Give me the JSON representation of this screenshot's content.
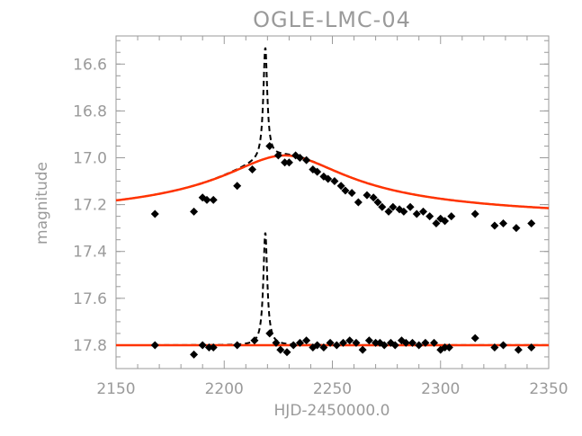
{
  "chart_data": {
    "type": "scatter",
    "title": "OGLE-LMC-04",
    "xlabel": "HJD-2450000.0",
    "ylabel": "magnitude",
    "xlim": [
      2150,
      2350
    ],
    "ylim": [
      17.9,
      16.48
    ],
    "y_inverted": true,
    "grid": false,
    "legend": "none",
    "colors": {
      "axes": "#9a9a9a",
      "points": "#000000",
      "model_fit": "#ff3300",
      "model_dashed": "#000000"
    },
    "x_ticks": [
      "2150",
      "2200",
      "2250",
      "2300",
      "2350"
    ],
    "y_ticks": [
      "16.6",
      "16.8",
      "17.0",
      "17.2",
      "17.4",
      "17.6",
      "17.8"
    ],
    "x_tick_values": [
      2150,
      2200,
      2250,
      2300,
      2350
    ],
    "y_tick_values": [
      16.6,
      16.8,
      17.0,
      17.2,
      17.4,
      17.6,
      17.8
    ],
    "upper_points": [
      [
        2168,
        17.24
      ],
      [
        2186,
        17.23
      ],
      [
        2190,
        17.17
      ],
      [
        2192,
        17.18
      ],
      [
        2195,
        17.18
      ],
      [
        2206,
        17.12
      ],
      [
        2213,
        17.05
      ],
      [
        2221,
        16.95
      ],
      [
        2225,
        16.99
      ],
      [
        2228,
        17.02
      ],
      [
        2230,
        17.02
      ],
      [
        2233,
        16.99
      ],
      [
        2235,
        17.0
      ],
      [
        2238,
        17.01
      ],
      [
        2241,
        17.05
      ],
      [
        2243,
        17.06
      ],
      [
        2246,
        17.08
      ],
      [
        2248,
        17.09
      ],
      [
        2251,
        17.1
      ],
      [
        2254,
        17.12
      ],
      [
        2256,
        17.14
      ],
      [
        2259,
        17.15
      ],
      [
        2262,
        17.19
      ],
      [
        2266,
        17.16
      ],
      [
        2269,
        17.17
      ],
      [
        2271,
        17.19
      ],
      [
        2273,
        17.21
      ],
      [
        2276,
        17.23
      ],
      [
        2278,
        17.21
      ],
      [
        2281,
        17.22
      ],
      [
        2283,
        17.23
      ],
      [
        2286,
        17.21
      ],
      [
        2289,
        17.24
      ],
      [
        2292,
        17.23
      ],
      [
        2295,
        17.25
      ],
      [
        2298,
        17.28
      ],
      [
        2300,
        17.26
      ],
      [
        2302,
        17.27
      ],
      [
        2305,
        17.25
      ],
      [
        2316,
        17.24
      ],
      [
        2325,
        17.29
      ],
      [
        2329,
        17.28
      ],
      [
        2335,
        17.3
      ],
      [
        2342,
        17.28
      ]
    ],
    "lower_points": [
      [
        2168,
        17.8
      ],
      [
        2186,
        17.84
      ],
      [
        2190,
        17.8
      ],
      [
        2193,
        17.81
      ],
      [
        2195,
        17.81
      ],
      [
        2206,
        17.8
      ],
      [
        2214,
        17.78
      ],
      [
        2221,
        17.75
      ],
      [
        2224,
        17.79
      ],
      [
        2226,
        17.82
      ],
      [
        2229,
        17.83
      ],
      [
        2232,
        17.8
      ],
      [
        2235,
        17.79
      ],
      [
        2238,
        17.78
      ],
      [
        2241,
        17.81
      ],
      [
        2243,
        17.8
      ],
      [
        2246,
        17.81
      ],
      [
        2249,
        17.79
      ],
      [
        2252,
        17.8
      ],
      [
        2255,
        17.79
      ],
      [
        2258,
        17.78
      ],
      [
        2261,
        17.79
      ],
      [
        2264,
        17.82
      ],
      [
        2267,
        17.78
      ],
      [
        2270,
        17.79
      ],
      [
        2272,
        17.79
      ],
      [
        2274,
        17.8
      ],
      [
        2277,
        17.79
      ],
      [
        2279,
        17.8
      ],
      [
        2282,
        17.78
      ],
      [
        2284,
        17.79
      ],
      [
        2287,
        17.79
      ],
      [
        2290,
        17.8
      ],
      [
        2293,
        17.79
      ],
      [
        2297,
        17.79
      ],
      [
        2300,
        17.82
      ],
      [
        2302,
        17.81
      ],
      [
        2304,
        17.81
      ],
      [
        2316,
        17.77
      ],
      [
        2325,
        17.81
      ],
      [
        2329,
        17.8
      ],
      [
        2336,
        17.82
      ],
      [
        2342,
        17.81
      ]
    ],
    "upper_fit_params": {
      "baseline": 17.28,
      "amplitude": 0.29,
      "t0": 2228,
      "width": 28
    },
    "upper_spike_params": {
      "peak": 16.53,
      "t0": 2219
    },
    "lower_fit_level": 17.8,
    "lower_spike_params": {
      "peak": 17.32,
      "t0": 2219
    }
  }
}
